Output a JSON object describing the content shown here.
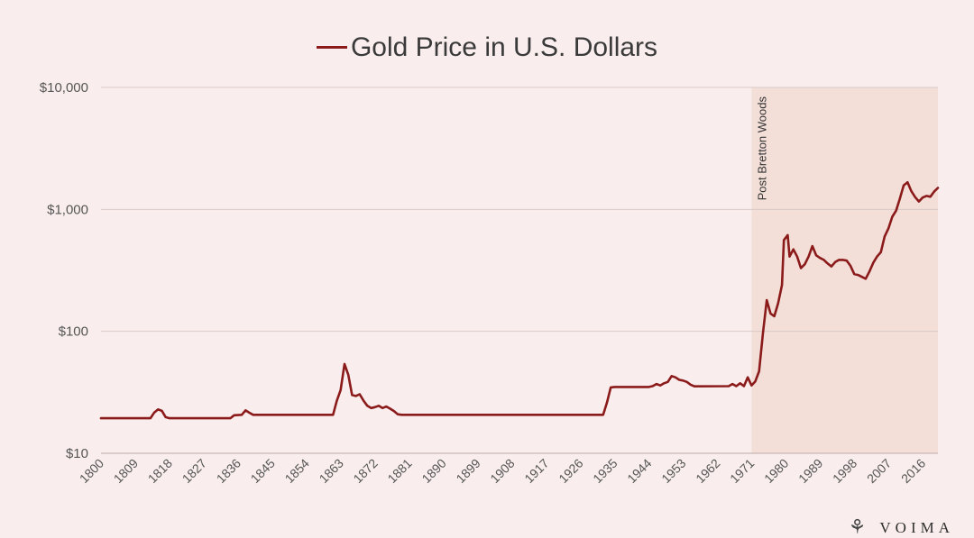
{
  "chart_data": {
    "type": "line",
    "title": "Gold Price in U.S. Dollars",
    "legend": "Gold Price in U.S. Dollars",
    "scale": "log",
    "ylim": [
      10,
      10000
    ],
    "xlim": [
      1800,
      2020
    ],
    "y_ticks": [
      10,
      100,
      1000,
      10000
    ],
    "y_tick_labels": [
      "$10",
      "$100",
      "$1,000",
      "$10,000"
    ],
    "x_ticks": [
      1800,
      1809,
      1818,
      1827,
      1836,
      1845,
      1854,
      1863,
      1872,
      1881,
      1890,
      1899,
      1908,
      1917,
      1926,
      1935,
      1944,
      1953,
      1962,
      1971,
      1980,
      1989,
      1998,
      2007,
      2016
    ],
    "x_tick_labels": [
      "1800",
      "1809",
      "1818",
      "1827",
      "1836",
      "1845",
      "1854",
      "1863",
      "1872",
      "1881",
      "1890",
      "1899",
      "1908",
      "1917",
      "1926",
      "1935",
      "1944",
      "1953",
      "1962",
      "1971",
      "1980",
      "1989",
      "1998",
      "2007",
      "2016"
    ],
    "annotation": {
      "label": "Post Bretton Woods",
      "start": 1971,
      "end": 2020
    },
    "line_color": "#8b1a1a",
    "shade_color": "#f3dfd8",
    "series": [
      {
        "name": "Gold Price in U.S. Dollars",
        "points": [
          [
            1800,
            19.39
          ],
          [
            1813,
            19.39
          ],
          [
            1814,
            21.6
          ],
          [
            1815,
            22.9
          ],
          [
            1816,
            22.3
          ],
          [
            1817,
            19.8
          ],
          [
            1818,
            19.39
          ],
          [
            1834,
            19.39
          ],
          [
            1835,
            20.5
          ],
          [
            1837,
            20.67
          ],
          [
            1838,
            22.5
          ],
          [
            1839,
            21.5
          ],
          [
            1840,
            20.67
          ],
          [
            1861,
            20.67
          ],
          [
            1862,
            27
          ],
          [
            1863,
            33
          ],
          [
            1864,
            54
          ],
          [
            1865,
            44
          ],
          [
            1866,
            30
          ],
          [
            1867,
            29.5
          ],
          [
            1868,
            30.5
          ],
          [
            1869,
            27
          ],
          [
            1870,
            24.5
          ],
          [
            1871,
            23.5
          ],
          [
            1872,
            23.9
          ],
          [
            1873,
            24.5
          ],
          [
            1874,
            23.5
          ],
          [
            1875,
            24.2
          ],
          [
            1876,
            23.2
          ],
          [
            1877,
            22.2
          ],
          [
            1878,
            20.9
          ],
          [
            1879,
            20.67
          ],
          [
            1932,
            20.67
          ],
          [
            1933,
            26
          ],
          [
            1934,
            34.7
          ],
          [
            1935,
            35
          ],
          [
            1944,
            35
          ],
          [
            1945,
            35.5
          ],
          [
            1946,
            37
          ],
          [
            1947,
            36
          ],
          [
            1948,
            37.5
          ],
          [
            1949,
            38.5
          ],
          [
            1950,
            43
          ],
          [
            1951,
            42
          ],
          [
            1952,
            40
          ],
          [
            1953,
            39.5
          ],
          [
            1954,
            38.5
          ],
          [
            1955,
            36.5
          ],
          [
            1956,
            35.4
          ],
          [
            1965,
            35.5
          ],
          [
            1966,
            37
          ],
          [
            1967,
            35.5
          ],
          [
            1968,
            37.5
          ],
          [
            1969,
            35.5
          ],
          [
            1970,
            42
          ],
          [
            1971,
            36
          ],
          [
            1972,
            38.9
          ],
          [
            1973,
            47
          ],
          [
            1974,
            97
          ],
          [
            1975,
            180
          ],
          [
            1976,
            140
          ],
          [
            1977,
            133
          ],
          [
            1978,
            170
          ],
          [
            1979,
            240
          ],
          [
            1979.5,
            560
          ],
          [
            1980.5,
            615
          ],
          [
            1981,
            410
          ],
          [
            1982,
            470
          ],
          [
            1983,
            410
          ],
          [
            1984,
            330
          ],
          [
            1985,
            355
          ],
          [
            1986,
            410
          ],
          [
            1987,
            500
          ],
          [
            1988,
            420
          ],
          [
            1989,
            400
          ],
          [
            1990,
            385
          ],
          [
            1991,
            360
          ],
          [
            1992,
            340
          ],
          [
            1993,
            370
          ],
          [
            1994,
            385
          ],
          [
            1995,
            385
          ],
          [
            1996,
            380
          ],
          [
            1997,
            345
          ],
          [
            1998,
            295
          ],
          [
            1999,
            290
          ],
          [
            2000,
            280
          ],
          [
            2001,
            270
          ],
          [
            2002,
            310
          ],
          [
            2003,
            365
          ],
          [
            2004,
            410
          ],
          [
            2005,
            445
          ],
          [
            2006,
            600
          ],
          [
            2007,
            700
          ],
          [
            2008,
            870
          ],
          [
            2009,
            975
          ],
          [
            2010,
            1225
          ],
          [
            2011,
            1570
          ],
          [
            2012,
            1670
          ],
          [
            2013,
            1410
          ],
          [
            2014,
            1260
          ],
          [
            2015,
            1160
          ],
          [
            2016,
            1250
          ],
          [
            2017,
            1290
          ],
          [
            2018,
            1270
          ],
          [
            2019,
            1400
          ],
          [
            2020,
            1500
          ]
        ]
      }
    ]
  },
  "brand": {
    "name": "VOIMA",
    "mark": "⚘"
  }
}
